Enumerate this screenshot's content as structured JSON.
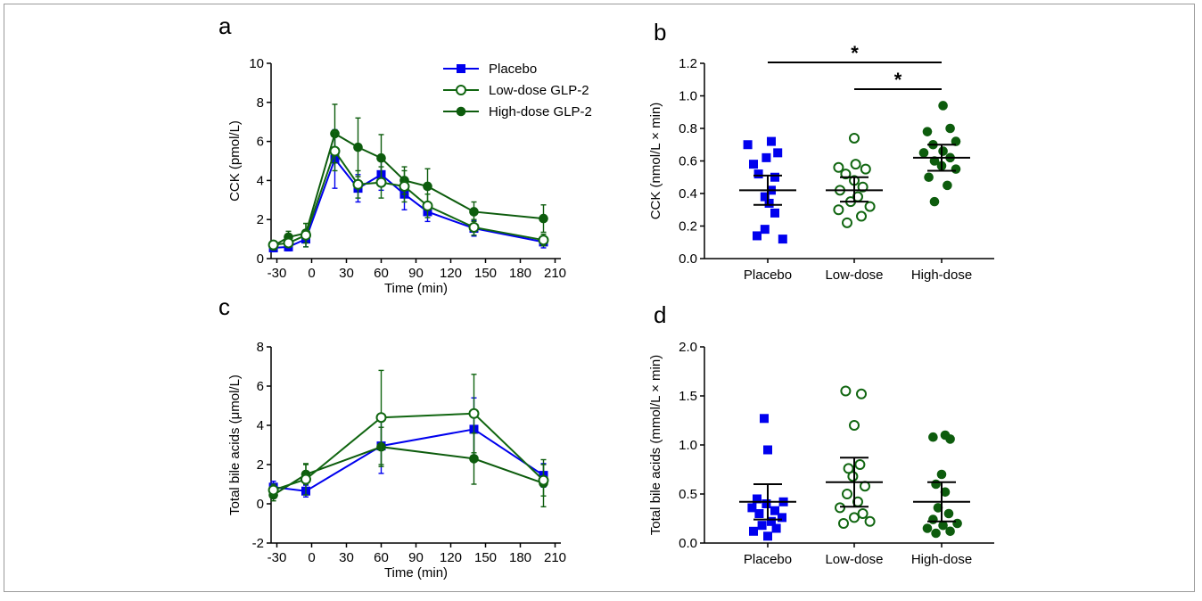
{
  "colors": {
    "placebo": "#0000ee",
    "low": "#116611",
    "high": "#0d5c0d",
    "axis": "#000000"
  },
  "chart_data": [
    {
      "panel": "a",
      "type": "line",
      "ylabel": "CCK (pmol/L)",
      "xlabel": "Time (min)",
      "xlim": [
        -35,
        215
      ],
      "ylim": [
        0,
        10
      ],
      "xticks": [
        -30,
        0,
        30,
        60,
        90,
        120,
        150,
        180,
        210
      ],
      "yticks": [
        0,
        2,
        4,
        6,
        8,
        10
      ],
      "legend": {
        "position": "top-right",
        "entries": [
          "Placebo",
          "Low-dose GLP-2",
          "High-dose GLP-2"
        ]
      },
      "series": [
        {
          "name": "Placebo",
          "marker": "square-filled",
          "x": [
            -33,
            -20,
            -5,
            20,
            40,
            60,
            80,
            100,
            140,
            200
          ],
          "y": [
            0.55,
            0.6,
            1.0,
            5.1,
            3.6,
            4.3,
            3.3,
            2.4,
            1.55,
            0.85
          ],
          "err": [
            0.1,
            0.2,
            0.4,
            1.5,
            0.7,
            0.8,
            0.8,
            0.5,
            0.4,
            0.3
          ]
        },
        {
          "name": "Low-dose GLP-2",
          "marker": "circle-open",
          "x": [
            -33,
            -20,
            -5,
            20,
            40,
            60,
            80,
            100,
            140,
            200
          ],
          "y": [
            0.7,
            0.8,
            1.2,
            5.5,
            3.8,
            3.9,
            3.7,
            2.7,
            1.6,
            0.95
          ],
          "err": [
            0.15,
            0.2,
            0.6,
            1.0,
            0.7,
            0.8,
            0.8,
            0.6,
            0.4,
            0.3
          ]
        },
        {
          "name": "High-dose GLP-2",
          "marker": "circle-filled",
          "x": [
            -33,
            -20,
            -5,
            20,
            40,
            60,
            80,
            100,
            140,
            200
          ],
          "y": [
            0.65,
            1.1,
            1.3,
            6.4,
            5.7,
            5.15,
            4.0,
            3.7,
            2.4,
            2.05
          ],
          "err": [
            0.2,
            0.3,
            0.5,
            1.5,
            1.5,
            1.2,
            0.7,
            0.9,
            0.5,
            0.7
          ]
        }
      ]
    },
    {
      "panel": "b",
      "type": "scatter",
      "ylabel": "CCK (nmol/L × min)",
      "categories": [
        "Placebo",
        "Low-dose",
        "High-dose"
      ],
      "ylim": [
        0,
        1.2
      ],
      "yticks": [
        "0.0",
        "0.2",
        "0.4",
        "0.6",
        "0.8",
        "1.0",
        "1.2"
      ],
      "significance": [
        {
          "from": "Placebo",
          "to": "High-dose",
          "label": "*"
        },
        {
          "from": "Low-dose",
          "to": "High-dose",
          "label": "*"
        }
      ],
      "groups": [
        {
          "name": "Placebo",
          "marker": "square-filled",
          "mean": 0.42,
          "ci": [
            0.33,
            0.51
          ],
          "points": [
            [
              0.12,
              0.71
            ],
            [
              0.14,
              0.35
            ],
            [
              0.18,
              0.46
            ],
            [
              0.28,
              0.6
            ],
            [
              0.34,
              0.52
            ],
            [
              0.38,
              0.46
            ],
            [
              0.42,
              0.55
            ],
            [
              0.5,
              0.6
            ],
            [
              0.52,
              0.37
            ],
            [
              0.58,
              0.3
            ],
            [
              0.62,
              0.48
            ],
            [
              0.65,
              0.64
            ],
            [
              0.7,
              0.22
            ],
            [
              0.72,
              0.55
            ]
          ]
        },
        {
          "name": "Low-dose",
          "marker": "circle-open",
          "mean": 0.42,
          "ci": [
            0.35,
            0.5
          ],
          "points": [
            [
              0.22,
              0.4
            ],
            [
              0.26,
              0.6
            ],
            [
              0.3,
              0.28
            ],
            [
              0.32,
              0.72
            ],
            [
              0.35,
              0.45
            ],
            [
              0.38,
              0.55
            ],
            [
              0.42,
              0.3
            ],
            [
              0.44,
              0.62
            ],
            [
              0.48,
              0.5
            ],
            [
              0.52,
              0.38
            ],
            [
              0.55,
              0.66
            ],
            [
              0.56,
              0.28
            ],
            [
              0.58,
              0.52
            ],
            [
              0.74,
              0.5
            ]
          ]
        },
        {
          "name": "High-dose",
          "marker": "circle-filled",
          "mean": 0.62,
          "ci": [
            0.54,
            0.7
          ],
          "points": [
            [
              0.35,
              0.4
            ],
            [
              0.45,
              0.58
            ],
            [
              0.5,
              0.32
            ],
            [
              0.55,
              0.7
            ],
            [
              0.57,
              0.5
            ],
            [
              0.6,
              0.4
            ],
            [
              0.62,
              0.62
            ],
            [
              0.65,
              0.25
            ],
            [
              0.66,
              0.52
            ],
            [
              0.7,
              0.38
            ],
            [
              0.72,
              0.7
            ],
            [
              0.78,
              0.3
            ],
            [
              0.8,
              0.62
            ],
            [
              0.94,
              0.52
            ]
          ]
        }
      ]
    },
    {
      "panel": "c",
      "type": "line",
      "ylabel": "Total bile acids (μmol/L)",
      "xlabel": "Time (min)",
      "xlim": [
        -35,
        215
      ],
      "ylim": [
        -2,
        8
      ],
      "xticks": [
        -30,
        0,
        30,
        60,
        90,
        120,
        150,
        180,
        210
      ],
      "yticks": [
        -2,
        0,
        2,
        4,
        6,
        8
      ],
      "series": [
        {
          "name": "Placebo",
          "marker": "square-filled",
          "x": [
            -33,
            -5,
            60,
            140,
            200
          ],
          "y": [
            0.85,
            0.65,
            2.95,
            3.8,
            1.45
          ],
          "err": [
            0.3,
            0.3,
            1.4,
            1.6,
            0.6
          ]
        },
        {
          "name": "Low-dose GLP-2",
          "marker": "circle-open",
          "x": [
            -33,
            -5,
            60,
            140,
            200
          ],
          "y": [
            0.7,
            1.25,
            4.4,
            4.6,
            1.2
          ],
          "err": [
            0.3,
            0.8,
            2.4,
            2.0,
            0.8
          ]
        },
        {
          "name": "High-dose GLP-2",
          "marker": "circle-filled",
          "x": [
            -33,
            -5,
            60,
            140,
            200
          ],
          "y": [
            0.45,
            1.5,
            2.9,
            2.3,
            1.05
          ],
          "err": [
            0.3,
            0.5,
            1.0,
            1.3,
            1.2
          ]
        }
      ]
    },
    {
      "panel": "d",
      "type": "scatter",
      "ylabel": "Total bile acids (mmol/L × min)",
      "categories": [
        "Placebo",
        "Low-dose",
        "High-dose"
      ],
      "ylim": [
        0,
        2
      ],
      "yticks": [
        "0.0",
        "0.5",
        "1.0",
        "1.5",
        "2.0"
      ],
      "groups": [
        {
          "name": "Placebo",
          "marker": "square-filled",
          "mean": 0.42,
          "ci": [
            0.24,
            0.6
          ],
          "points": [
            [
              0.07,
              0.5
            ],
            [
              0.12,
              0.3
            ],
            [
              0.15,
              0.62
            ],
            [
              0.18,
              0.42
            ],
            [
              0.22,
              0.55
            ],
            [
              0.26,
              0.7
            ],
            [
              0.3,
              0.38
            ],
            [
              0.33,
              0.6
            ],
            [
              0.36,
              0.28
            ],
            [
              0.4,
              0.48
            ],
            [
              0.42,
              0.72
            ],
            [
              0.45,
              0.35
            ],
            [
              0.95,
              0.5
            ],
            [
              1.27,
              0.45
            ]
          ]
        },
        {
          "name": "Low-dose",
          "marker": "circle-open",
          "mean": 0.62,
          "ci": [
            0.37,
            0.87
          ],
          "points": [
            [
              0.2,
              0.35
            ],
            [
              0.22,
              0.72
            ],
            [
              0.26,
              0.5
            ],
            [
              0.3,
              0.62
            ],
            [
              0.36,
              0.3
            ],
            [
              0.42,
              0.55
            ],
            [
              0.5,
              0.4
            ],
            [
              0.58,
              0.65
            ],
            [
              0.68,
              0.48
            ],
            [
              0.76,
              0.42
            ],
            [
              0.8,
              0.58
            ],
            [
              1.2,
              0.5
            ],
            [
              1.52,
              0.6
            ],
            [
              1.55,
              0.38
            ]
          ]
        },
        {
          "name": "High-dose",
          "marker": "circle-filled",
          "mean": 0.42,
          "ci": [
            0.22,
            0.62
          ],
          "points": [
            [
              0.1,
              0.42
            ],
            [
              0.12,
              0.62
            ],
            [
              0.15,
              0.3
            ],
            [
              0.18,
              0.52
            ],
            [
              0.2,
              0.72
            ],
            [
              0.24,
              0.38
            ],
            [
              0.3,
              0.6
            ],
            [
              0.36,
              0.45
            ],
            [
              0.52,
              0.55
            ],
            [
              0.6,
              0.42
            ],
            [
              0.7,
              0.5
            ],
            [
              1.06,
              0.62
            ],
            [
              1.08,
              0.38
            ],
            [
              1.1,
              0.55
            ]
          ]
        }
      ]
    }
  ]
}
